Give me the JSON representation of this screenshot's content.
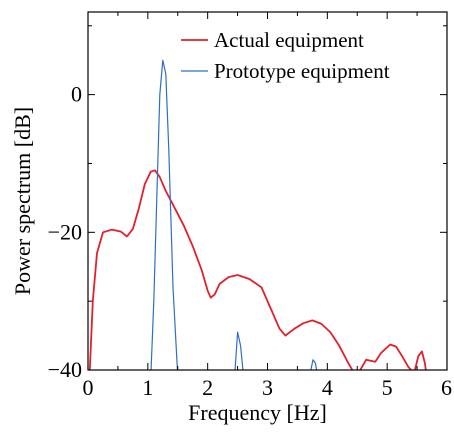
{
  "chart_data": {
    "type": "line",
    "xlabel": "Frequency [Hz]",
    "ylabel": "Power spectrum [dB]",
    "xlim": [
      0,
      6
    ],
    "ylim": [
      -40,
      12
    ],
    "x_ticks": [
      "0",
      "1",
      "2",
      "3",
      "4",
      "5",
      "6"
    ],
    "y_ticks": [
      "0",
      "−20",
      "−40"
    ],
    "legend_position": "top-right",
    "grid": false,
    "series": [
      {
        "name": "Actual equipment",
        "color": "#e3202a",
        "points": [
          [
            0.03,
            -40
          ],
          [
            0.08,
            -30
          ],
          [
            0.15,
            -23
          ],
          [
            0.25,
            -20
          ],
          [
            0.4,
            -19.6
          ],
          [
            0.55,
            -19.9
          ],
          [
            0.65,
            -20.6
          ],
          [
            0.75,
            -19.5
          ],
          [
            0.85,
            -16.5
          ],
          [
            0.95,
            -13
          ],
          [
            1.05,
            -11.2
          ],
          [
            1.12,
            -11.0
          ],
          [
            1.2,
            -12.0
          ],
          [
            1.3,
            -14.0
          ],
          [
            1.45,
            -16.5
          ],
          [
            1.6,
            -19.0
          ],
          [
            1.75,
            -22.0
          ],
          [
            1.9,
            -25.5
          ],
          [
            2.0,
            -28.5
          ],
          [
            2.05,
            -29.5
          ],
          [
            2.12,
            -29.0
          ],
          [
            2.2,
            -27.5
          ],
          [
            2.35,
            -26.5
          ],
          [
            2.5,
            -26.2
          ],
          [
            2.7,
            -26.8
          ],
          [
            2.9,
            -28.0
          ],
          [
            3.05,
            -31.0
          ],
          [
            3.2,
            -34.0
          ],
          [
            3.3,
            -35.0
          ],
          [
            3.45,
            -34.0
          ],
          [
            3.6,
            -33.2
          ],
          [
            3.75,
            -32.8
          ],
          [
            3.9,
            -33.3
          ],
          [
            4.05,
            -34.5
          ],
          [
            4.2,
            -36.5
          ],
          [
            4.35,
            -39.0
          ],
          [
            4.45,
            -40.5
          ],
          [
            4.55,
            -40.0
          ],
          [
            4.65,
            -38.5
          ],
          [
            4.8,
            -38.8
          ],
          [
            4.9,
            -37.5
          ],
          [
            5.05,
            -36.3
          ],
          [
            5.15,
            -36.6
          ],
          [
            5.25,
            -38.0
          ],
          [
            5.35,
            -39.5
          ],
          [
            5.45,
            -40.5
          ],
          [
            5.52,
            -38.0
          ],
          [
            5.58,
            -37.3
          ],
          [
            5.63,
            -39.0
          ],
          [
            5.66,
            -41
          ]
        ]
      },
      {
        "name": "Prototype equipment",
        "color": "#2f6fc0",
        "points": [
          [
            1.05,
            -41
          ],
          [
            1.1,
            -30
          ],
          [
            1.15,
            -15
          ],
          [
            1.2,
            0
          ],
          [
            1.25,
            5
          ],
          [
            1.3,
            3
          ],
          [
            1.35,
            -8
          ],
          [
            1.42,
            -28
          ],
          [
            1.5,
            -41
          ],
          [
            null,
            null
          ],
          [
            2.45,
            -41
          ],
          [
            2.5,
            -34.5
          ],
          [
            2.55,
            -36.5
          ],
          [
            2.6,
            -41
          ],
          [
            null,
            null
          ],
          [
            3.7,
            -41
          ],
          [
            3.76,
            -38.5
          ],
          [
            3.8,
            -39
          ],
          [
            3.84,
            -41
          ]
        ]
      }
    ]
  }
}
